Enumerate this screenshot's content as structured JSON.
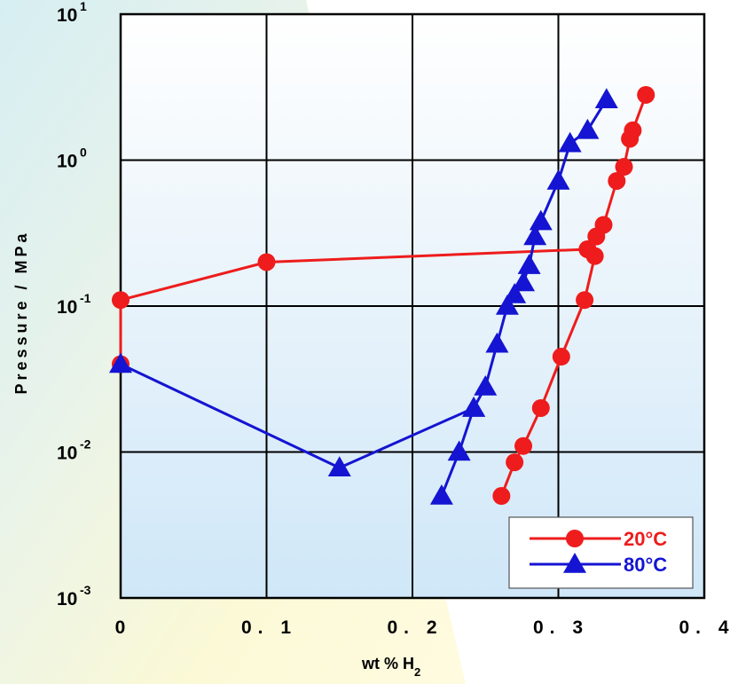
{
  "chart_data": {
    "type": "line",
    "xlabel": {
      "main": "wt % H",
      "sub": "2"
    },
    "ylabel": "Pressure / MPa",
    "x_ticks": [
      "0",
      "0. 1",
      "0. 2",
      "0. 3",
      "0. 4"
    ],
    "y_ticks": [
      {
        "base": "10",
        "exp": "-3"
      },
      {
        "base": "10",
        "exp": "-2"
      },
      {
        "base": "10",
        "exp": "-1"
      },
      {
        "base": "10",
        "exp": "0"
      },
      {
        "base": "10",
        "exp": "1"
      }
    ],
    "xlim": [
      0,
      0.4
    ],
    "ylim": [
      0.001,
      10
    ],
    "y_scale": "log",
    "grid": true,
    "legend_position": "bottom-right",
    "series": [
      {
        "name": "20°C",
        "color": "#ee1c1c",
        "marker": "circle",
        "points": [
          [
            0.0,
            0.04
          ],
          [
            0.0,
            0.11
          ],
          [
            0.1,
            0.2
          ],
          [
            0.32,
            0.245
          ],
          [
            0.325,
            0.22
          ],
          [
            0.318,
            0.11
          ],
          [
            0.302,
            0.045
          ],
          [
            0.288,
            0.02
          ],
          [
            0.276,
            0.011
          ],
          [
            0.27,
            0.0085
          ],
          [
            0.261,
            0.005
          ]
        ],
        "points2": [
          [
            0.32,
            0.245
          ],
          [
            0.326,
            0.3
          ],
          [
            0.331,
            0.36
          ],
          [
            0.34,
            0.72
          ],
          [
            0.345,
            0.9
          ],
          [
            0.349,
            1.4
          ],
          [
            0.351,
            1.6
          ],
          [
            0.36,
            2.8
          ]
        ]
      },
      {
        "name": "80°C",
        "color": "#1414d2",
        "marker": "triangle",
        "points": [
          [
            0.0,
            0.04
          ],
          [
            0.15,
            0.0078
          ],
          [
            0.242,
            0.02
          ],
          [
            0.25,
            0.028
          ],
          [
            0.258,
            0.055
          ],
          [
            0.265,
            0.1
          ],
          [
            0.27,
            0.12
          ],
          [
            0.276,
            0.145
          ],
          [
            0.28,
            0.19
          ],
          [
            0.284,
            0.3
          ],
          [
            0.288,
            0.38
          ],
          [
            0.3,
            0.72
          ],
          [
            0.308,
            1.3
          ],
          [
            0.32,
            1.6
          ],
          [
            0.333,
            2.6
          ]
        ],
        "points2": [
          [
            0.22,
            0.005
          ],
          [
            0.232,
            0.01
          ],
          [
            0.242,
            0.02
          ]
        ]
      }
    ]
  }
}
